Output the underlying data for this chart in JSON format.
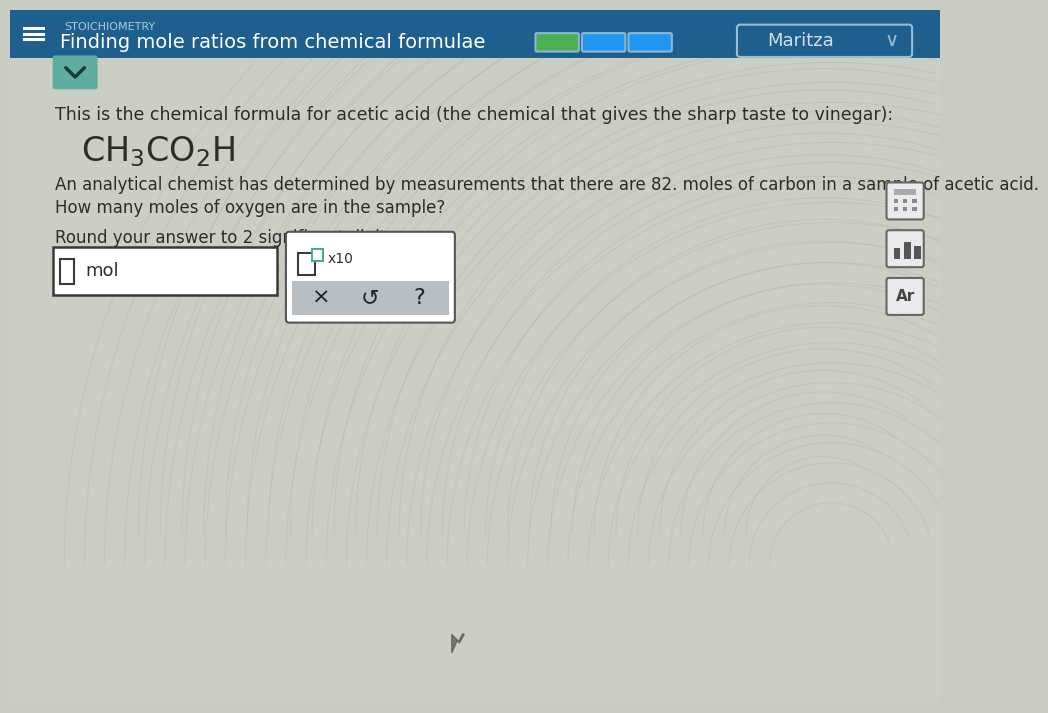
{
  "header_bg": "#1e5f8e",
  "header_title": "Finding mole ratios from chemical formulae",
  "header_text_color": "#ffffff",
  "user_name": "Maritza",
  "body_bg_top": "#c8cbbf",
  "body_bg": "#c9ccc0",
  "body_text_color": "#2c2c2c",
  "intro_text": "This is the chemical formula for acetic acid (the chemical that gives the sharp taste to vinegar):",
  "problem_text1": "An analytical chemist has determined by measurements that there are 82. moles of carbon in a sample of acetic acid.",
  "problem_text2": "How many moles of oxygen are in the sample?",
  "round_text": "Round your answer to 2 significant digits.",
  "input_box_label": "mol",
  "x10_label": "x10",
  "progress_bar_green": "#4caf50",
  "progress_bar_blue1": "#2196f3",
  "progress_bar_blue2": "#2196f3",
  "teal_btn": "#5fada0",
  "icon_border": "#666666",
  "icon_bg": "#e8eaeb"
}
